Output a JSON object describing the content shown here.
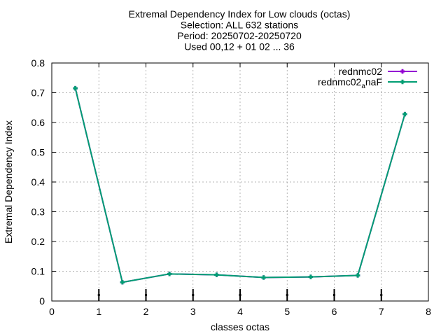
{
  "chart_data": {
    "type": "line",
    "title_lines": [
      "Extremal Dependency Index  for Low clouds (octas)",
      "Selection: ALL    632 stations",
      "Period: 20250702-20250720",
      "Used 00,12 + 01 02 ... 36"
    ],
    "xlabel": "classes octas",
    "ylabel": "Extremal Dependency Index",
    "xlim": [
      0,
      8
    ],
    "ylim": [
      0,
      0.8
    ],
    "xticks": [
      0,
      1,
      2,
      3,
      4,
      5,
      6,
      7,
      8
    ],
    "yticks": [
      0,
      0.1,
      0.2,
      0.3,
      0.4,
      0.5,
      0.6,
      0.7,
      0.8
    ],
    "grid": true,
    "legend_position": "top-right",
    "series": [
      {
        "name": "rednmc02",
        "color": "#9400d3",
        "x": [
          0.5,
          1.5,
          2.5,
          3.5,
          4.5,
          5.5,
          6.5,
          7.5
        ],
        "y": [
          0.715,
          0.063,
          0.091,
          0.088,
          0.079,
          0.081,
          0.086,
          0.628
        ]
      },
      {
        "name_base": "rednmc02",
        "name_sub": "a",
        "name_tail": "naF",
        "color": "#009e73",
        "x": [
          0.5,
          1.5,
          2.5,
          3.5,
          4.5,
          5.5,
          6.5,
          7.5
        ],
        "y": [
          0.715,
          0.063,
          0.091,
          0.088,
          0.079,
          0.081,
          0.086,
          0.628
        ]
      }
    ],
    "error_bars": {
      "color": "#000000",
      "x": [
        1,
        2,
        3,
        4,
        5,
        6,
        7
      ],
      "y": [
        0.02,
        0.02,
        0.02,
        0.02,
        0.02,
        0.02,
        0.02
      ],
      "low": [
        0.0,
        0.0,
        0.0,
        0.0,
        0.0,
        0.0,
        0.0
      ],
      "high": [
        0.04,
        0.04,
        0.04,
        0.04,
        0.04,
        0.04,
        0.04
      ]
    }
  }
}
